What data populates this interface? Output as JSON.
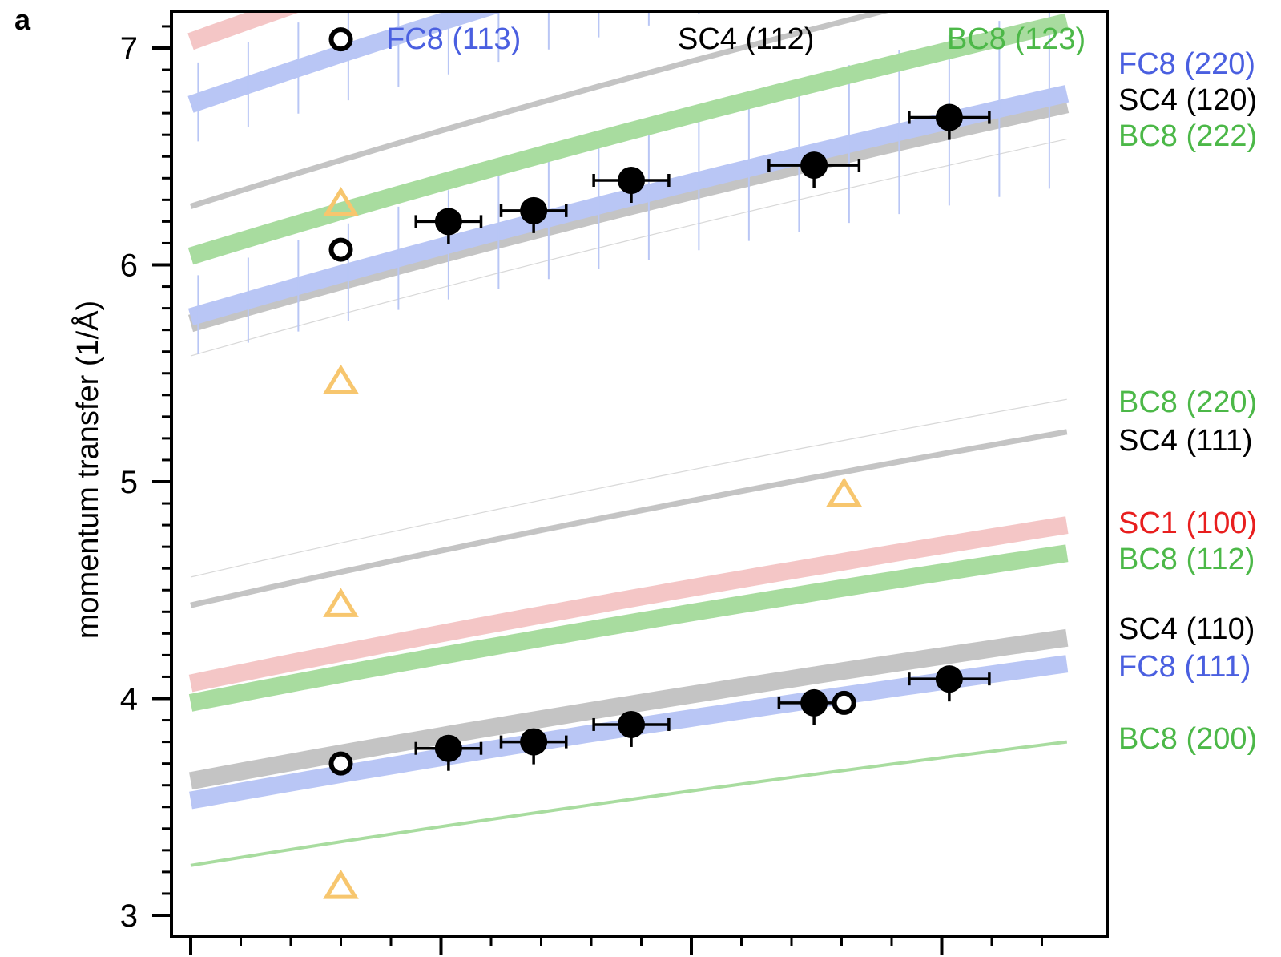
{
  "panel_label": "a",
  "chart_data": {
    "type": "scatter",
    "title": "",
    "xlabel": "",
    "ylabel": "momentum transfer (1/Å)",
    "x_ticks": [
      0,
      1,
      2,
      3
    ],
    "x_tick_labels": [
      "",
      "",
      "",
      ""
    ],
    "xlim": [
      -0.1,
      3.6
    ],
    "ylim": [
      2.95,
      7.2
    ],
    "y_ticks": [
      3,
      4,
      5,
      6,
      7
    ],
    "y_tick_labels": [
      "3",
      "4",
      "5",
      "6",
      "7"
    ],
    "grid": false,
    "legend": "none",
    "colors": {
      "FC8": "#4a5fe0",
      "FC8_band": "#b9c6f5",
      "SC4": "#000000",
      "SC4_band": "#c4c4c4",
      "BC8": "#4cb848",
      "BC8_band": "#a8dc9f",
      "SC1": "#e81e1e",
      "SC1_band": "#f4c6c6",
      "triangle": "#f7c66e"
    },
    "reflection_labels": [
      {
        "phase": "FC8",
        "hkl": "(113)",
        "placement": "top-inside"
      },
      {
        "phase": "SC4",
        "hkl": "(112)",
        "placement": "top-inside"
      },
      {
        "phase": "BC8",
        "hkl": "(123)",
        "placement": "top-inside"
      },
      {
        "phase": "FC8",
        "hkl": "(220)",
        "placement": "right"
      },
      {
        "phase": "SC4",
        "hkl": "(120)",
        "placement": "right"
      },
      {
        "phase": "BC8",
        "hkl": "(222)",
        "placement": "right"
      },
      {
        "phase": "BC8",
        "hkl": "(220)",
        "placement": "right"
      },
      {
        "phase": "SC4",
        "hkl": "(111)",
        "placement": "right"
      },
      {
        "phase": "SC1",
        "hkl": "(100)",
        "placement": "right"
      },
      {
        "phase": "BC8",
        "hkl": "(112)",
        "placement": "right"
      },
      {
        "phase": "SC4",
        "hkl": "(110)",
        "placement": "right"
      },
      {
        "phase": "FC8",
        "hkl": "(111)",
        "placement": "right"
      },
      {
        "phase": "BC8",
        "hkl": "(200)",
        "placement": "right"
      }
    ],
    "curves": [
      {
        "phase": "BC8",
        "hkl": "(200)",
        "start": 3.23,
        "end": 3.8,
        "style": "thin"
      },
      {
        "phase": "FC8",
        "hkl": "(111)",
        "start": 3.53,
        "end": 4.16,
        "style": "band"
      },
      {
        "phase": "SC4",
        "hkl": "(110)",
        "start": 3.62,
        "end": 4.28,
        "style": "band"
      },
      {
        "phase": "BC8",
        "hkl": "(112)",
        "start": 3.98,
        "end": 4.67,
        "style": "band"
      },
      {
        "phase": "SC1",
        "hkl": "(100)",
        "start": 4.07,
        "end": 4.8,
        "style": "band"
      },
      {
        "phase": "SC4",
        "hkl": "(111)",
        "start": 4.43,
        "end": 5.23,
        "style": "line"
      },
      {
        "phase": "BC8",
        "hkl": "(220)",
        "start": 4.56,
        "end": 5.38,
        "style": "hairline"
      },
      {
        "phase": "BC8",
        "hkl": "(222)",
        "start": 5.58,
        "end": 6.58,
        "style": "hairline"
      },
      {
        "phase": "SC4",
        "hkl": "(120)",
        "start": 5.73,
        "end": 6.74,
        "style": "band"
      },
      {
        "phase": "FC8",
        "hkl": "(220)",
        "start": 5.76,
        "end": 6.79,
        "style": "band-ticked"
      },
      {
        "phase": "BC8",
        "hkl": "(123)",
        "start": 6.04,
        "end": 7.12,
        "style": "band"
      },
      {
        "phase": "SC4",
        "hkl": "(112)",
        "start": 6.27,
        "end": 7.38,
        "style": "line"
      },
      {
        "phase": "FC8",
        "hkl": "(113)",
        "start": 6.74,
        "end": 7.95,
        "style": "band-ticked"
      },
      {
        "phase": "SC1",
        "hkl": "(110)",
        "start": 7.03,
        "end": 8.3,
        "style": "band"
      }
    ],
    "series": [
      {
        "marker": "filled-circle",
        "points": [
          {
            "x": 1.03,
            "y": 3.77,
            "xerr": 0.13
          },
          {
            "x": 1.37,
            "y": 3.8,
            "xerr": 0.13
          },
          {
            "x": 1.76,
            "y": 3.88,
            "xerr": 0.15
          },
          {
            "x": 2.49,
            "y": 3.98,
            "xerr": 0.14
          },
          {
            "x": 3.03,
            "y": 4.09,
            "xerr": 0.16
          },
          {
            "x": 1.03,
            "y": 6.2,
            "xerr": 0.13
          },
          {
            "x": 1.37,
            "y": 6.25,
            "xerr": 0.13
          },
          {
            "x": 1.76,
            "y": 6.39,
            "xerr": 0.15
          },
          {
            "x": 2.49,
            "y": 6.46,
            "xerr": 0.18
          },
          {
            "x": 3.03,
            "y": 6.68,
            "xerr": 0.16
          }
        ]
      },
      {
        "marker": "open-circle",
        "points": [
          {
            "x": 0.6,
            "y": 3.7
          },
          {
            "x": 2.61,
            "y": 3.98
          },
          {
            "x": 0.6,
            "y": 6.07
          },
          {
            "x": 0.6,
            "y": 7.04
          }
        ]
      },
      {
        "marker": "open-triangle",
        "points": [
          {
            "x": 0.6,
            "y": 3.13
          },
          {
            "x": 0.6,
            "y": 4.43
          },
          {
            "x": 2.61,
            "y": 4.94
          },
          {
            "x": 0.6,
            "y": 5.46
          },
          {
            "x": 0.6,
            "y": 6.28
          }
        ]
      }
    ]
  }
}
